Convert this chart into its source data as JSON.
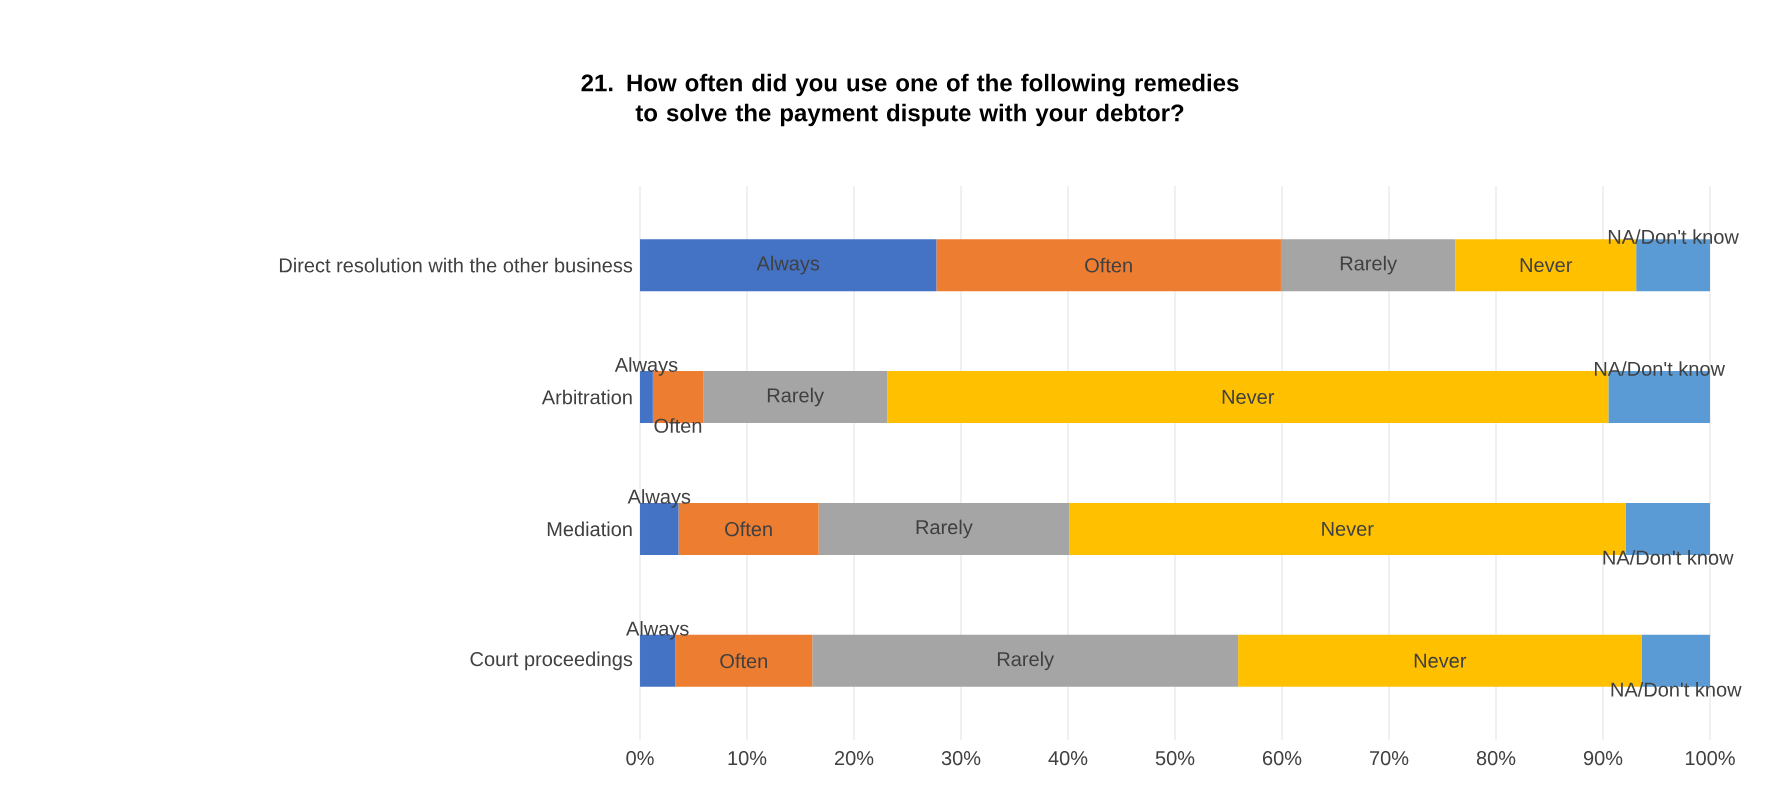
{
  "chart_data": {
    "type": "bar",
    "orientation": "horizontal",
    "stacked": true,
    "title": "21. How often did you use one of the following  remedies to solve the payment dispute with your debtor?",
    "categories": [
      "Direct resolution with the other business",
      "Arbitration",
      "Mediation",
      "Court proceedings"
    ],
    "series": [
      {
        "name": "Always",
        "color": "#4472c4",
        "values": [
          27.7,
          1.2,
          3.6,
          3.3
        ]
      },
      {
        "name": "Often",
        "color": "#ed7d31",
        "values": [
          32.2,
          4.7,
          13.1,
          12.8
        ]
      },
      {
        "name": "Rarely",
        "color": "#a5a5a5",
        "values": [
          16.3,
          17.2,
          23.4,
          39.8
        ]
      },
      {
        "name": "Never",
        "color": "#ffc000",
        "values": [
          16.9,
          67.4,
          52.0,
          37.7
        ]
      },
      {
        "name": "NA/Don't know",
        "color": "#5b9bd5",
        "values": [
          6.9,
          9.5,
          7.9,
          6.4
        ]
      }
    ],
    "xlim": [
      0,
      100
    ],
    "xticks": [
      {
        "value": 0,
        "label": "0%"
      },
      {
        "value": 10,
        "label": "10%"
      },
      {
        "value": 20,
        "label": "20%"
      },
      {
        "value": 30,
        "label": "30%"
      },
      {
        "value": 40,
        "label": "40%"
      },
      {
        "value": 50,
        "label": "50%"
      },
      {
        "value": 60,
        "label": "60%"
      },
      {
        "value": 70,
        "label": "70%"
      },
      {
        "value": 80,
        "label": "80%"
      },
      {
        "value": 90,
        "label": "90%"
      },
      {
        "value": 100,
        "label": "100%"
      }
    ],
    "grid": "x"
  }
}
